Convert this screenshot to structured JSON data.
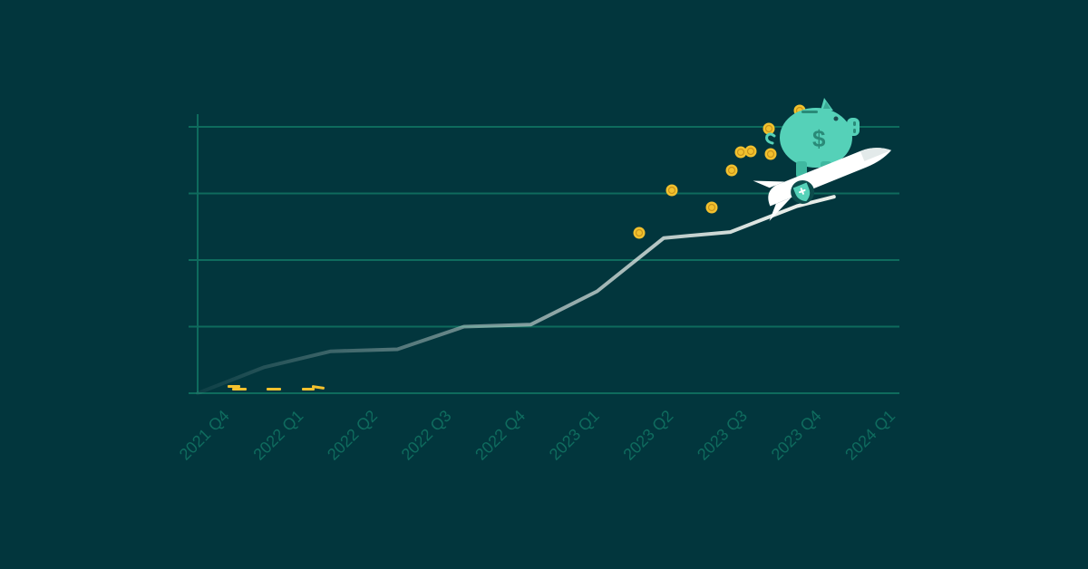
{
  "colors": {
    "background": "#02363d",
    "grid": "#0e6b5d",
    "tick_label": "#0f6b5e",
    "line_end": "#e6ece8",
    "coin": "#f2c12e",
    "piggy": "#55d1b8",
    "rocket": "#ffffff"
  },
  "chart_data": {
    "type": "line",
    "title": "",
    "xlabel": "",
    "ylabel": "",
    "categories": [
      "2021 Q4",
      "2022 Q1",
      "2022 Q2",
      "2022 Q3",
      "2022 Q4",
      "2023 Q1",
      "2023 Q2",
      "2023 Q3",
      "2023 Q4",
      "2024 Q1"
    ],
    "x": [
      0,
      0.9,
      1.8,
      2.7,
      3.6,
      4.5,
      5.4,
      6.3,
      7.2,
      8.1,
      8.6
    ],
    "values": [
      0,
      0.39,
      0.63,
      0.66,
      1.0,
      1.03,
      1.53,
      2.33,
      2.42,
      2.81,
      2.95
    ],
    "ylim": [
      0,
      4
    ],
    "xlim": [
      0,
      9
    ],
    "y_gridlines": 4,
    "grid": true,
    "legend": "none",
    "y_tick_labels": "none",
    "line_style": "gradient-fade-from-left",
    "decorations": [
      "piggy-bank-icon",
      "rocket-icon",
      "coin-icons"
    ]
  }
}
